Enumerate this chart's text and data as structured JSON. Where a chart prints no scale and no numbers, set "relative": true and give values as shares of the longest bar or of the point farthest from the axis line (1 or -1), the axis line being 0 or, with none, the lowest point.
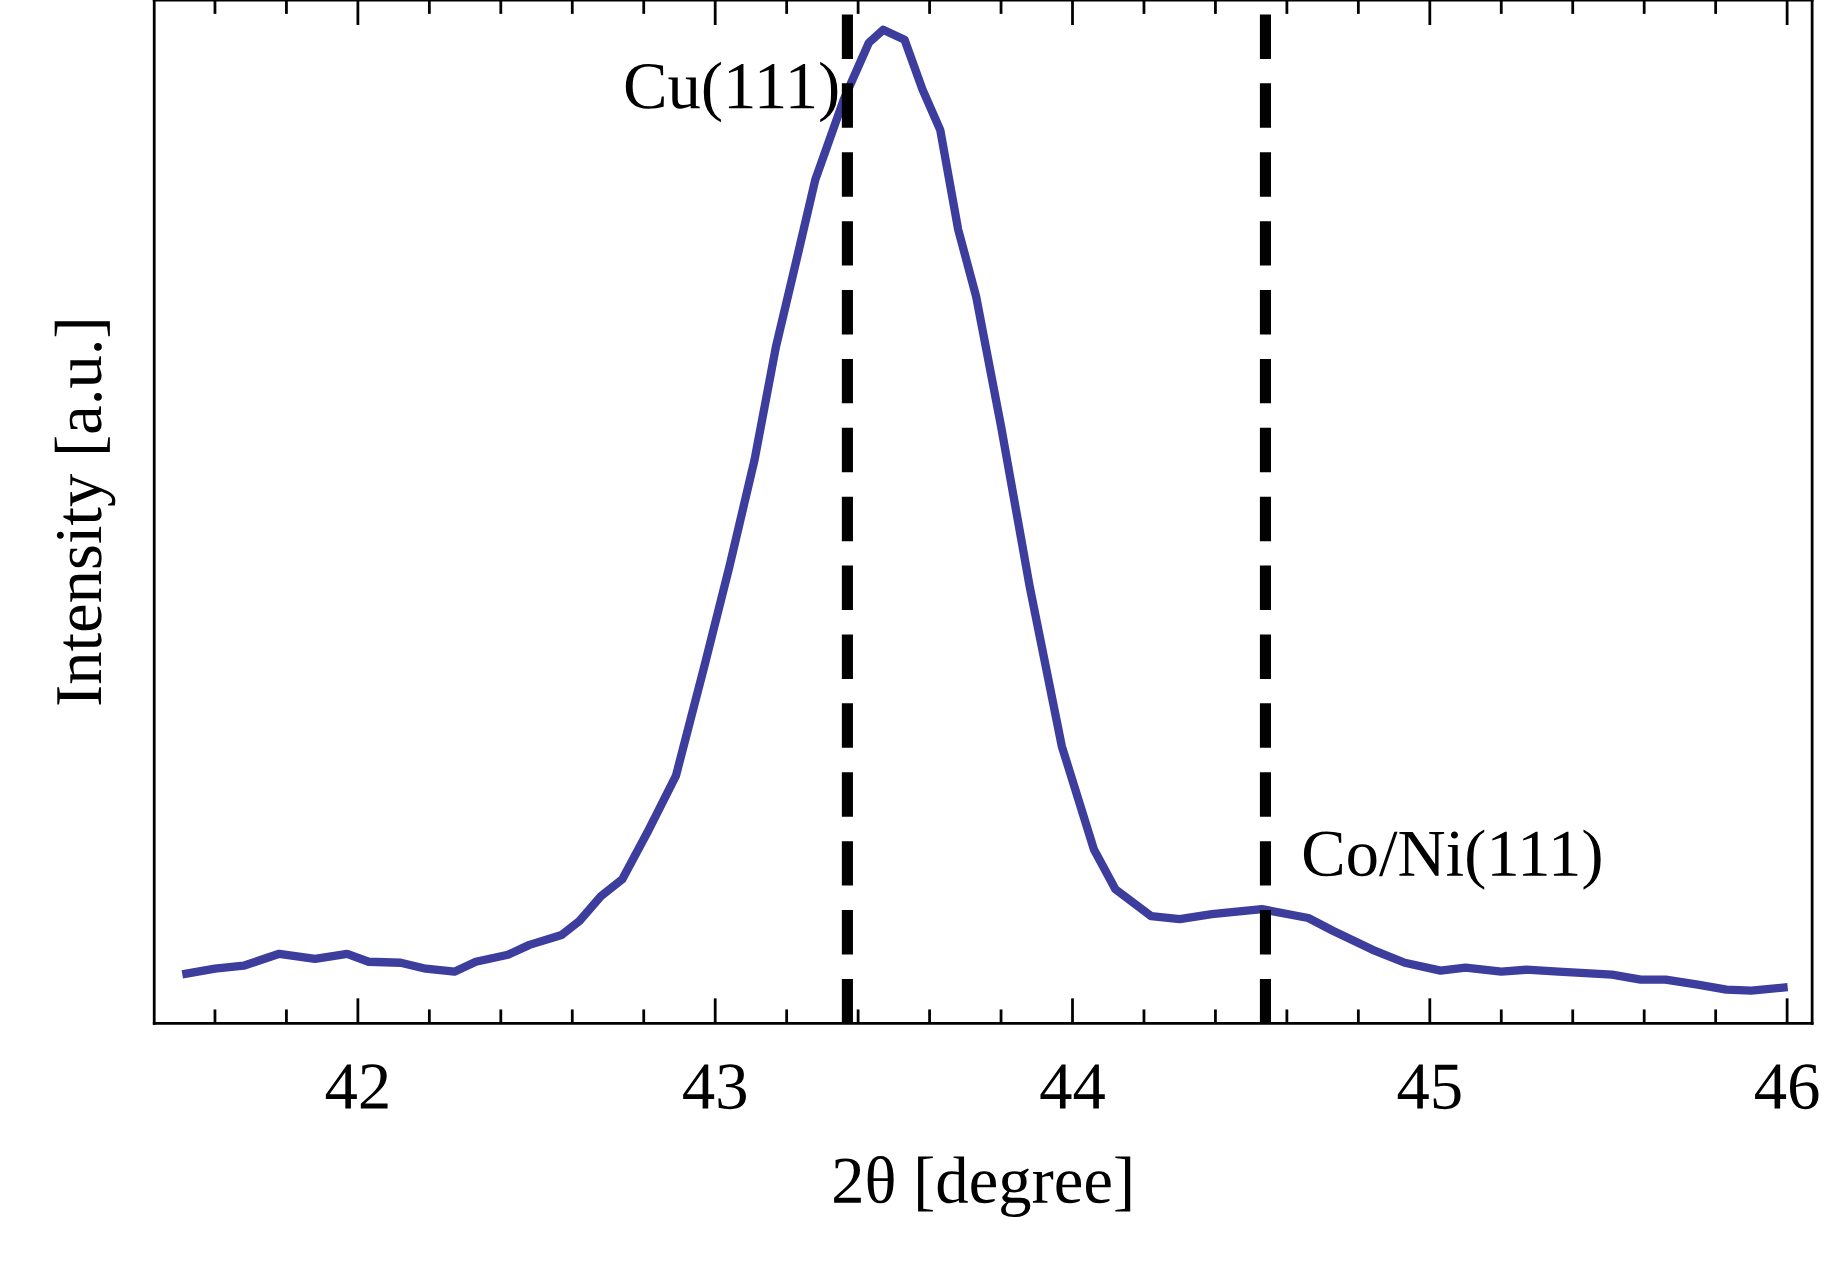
{
  "chart_data": {
    "type": "line",
    "xlabel": "2θ [degree]",
    "ylabel": "Intensity [a.u.]",
    "relative": true,
    "tick_labels": "x",
    "xlim": [
      41.43,
      46.07
    ],
    "xticks": [
      42,
      43,
      44,
      45,
      46
    ],
    "grid": false,
    "marker": "none",
    "line_style": "solid",
    "ref_lines": [
      {
        "axis": "x",
        "value": 43.37,
        "label": "Cu(111)",
        "color": "#000000",
        "line_style": "dashed"
      },
      {
        "axis": "x",
        "value": 44.54,
        "label": "Co/Ni(111)",
        "color": "#000000",
        "line_style": "dashed"
      }
    ],
    "series": [
      {
        "color": "#3d3d9e",
        "x": [
          41.52,
          41.6,
          41.68,
          41.78,
          41.88,
          41.97,
          42.03,
          42.12,
          42.19,
          42.27,
          42.33,
          42.42,
          42.48,
          42.57,
          42.62,
          42.68,
          42.74,
          42.81,
          42.89,
          42.97,
          43.04,
          43.11,
          43.17,
          43.23,
          43.28,
          43.36,
          43.43,
          43.47,
          43.53,
          43.58,
          43.63,
          43.68,
          43.73,
          43.8,
          43.88,
          43.97,
          44.06,
          44.12,
          44.22,
          44.3,
          44.39,
          44.53,
          44.66,
          44.73,
          44.84,
          44.93,
          45.03,
          45.1,
          45.2,
          45.27,
          45.36,
          45.46,
          45.51,
          45.59,
          45.66,
          45.75,
          45.83,
          45.9,
          45.99
        ],
        "values": [
          0.05,
          0.055,
          0.058,
          0.07,
          0.065,
          0.07,
          0.062,
          0.061,
          0.055,
          0.052,
          0.062,
          0.069,
          0.079,
          0.089,
          0.103,
          0.128,
          0.145,
          0.192,
          0.249,
          0.36,
          0.46,
          0.567,
          0.681,
          0.772,
          0.849,
          0.93,
          0.987,
          1.0,
          0.99,
          0.94,
          0.899,
          0.799,
          0.732,
          0.601,
          0.44,
          0.279,
          0.175,
          0.135,
          0.108,
          0.105,
          0.11,
          0.115,
          0.106,
          0.093,
          0.074,
          0.061,
          0.053,
          0.056,
          0.052,
          0.054,
          0.052,
          0.05,
          0.049,
          0.044,
          0.044,
          0.039,
          0.034,
          0.033,
          0.036
        ]
      }
    ]
  }
}
